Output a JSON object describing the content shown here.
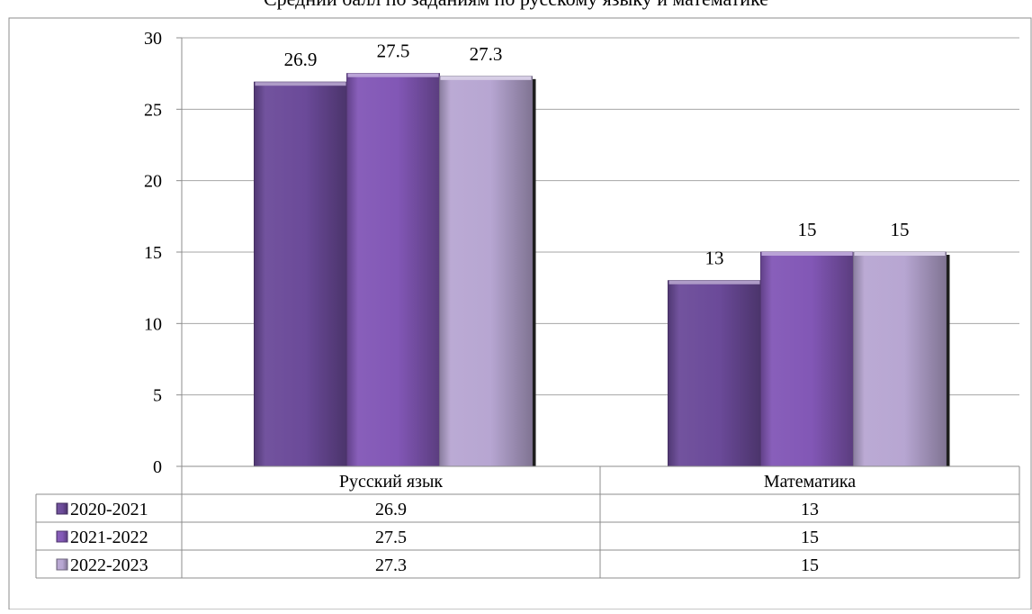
{
  "chart_data": {
    "type": "bar",
    "title": "Средний балл по заданиям по русскому языку и математике",
    "categories": [
      "Русский язык",
      "Математика"
    ],
    "series": [
      {
        "name": "2020-2021",
        "values": [
          26.9,
          13
        ],
        "color": "#6b4a99",
        "labels": [
          "26.9",
          "13"
        ],
        "table_values": [
          "26.9",
          "13"
        ]
      },
      {
        "name": "2021-2022",
        "values": [
          27.5,
          15
        ],
        "color": "#8257b6",
        "labels": [
          "27.5",
          "15"
        ],
        "table_values": [
          "27.5",
          "15"
        ]
      },
      {
        "name": "2022-2023",
        "values": [
          27.3,
          15
        ],
        "color": "#b7a6d2",
        "labels": [
          "27.3",
          "15"
        ],
        "table_values": [
          "27.3",
          "15"
        ]
      }
    ],
    "ylim": [
      0,
      30
    ],
    "yticks": [
      0,
      5,
      10,
      15,
      20,
      25,
      30
    ],
    "grid": true,
    "legend": "data-table-below",
    "xlabel": "",
    "ylabel": ""
  }
}
